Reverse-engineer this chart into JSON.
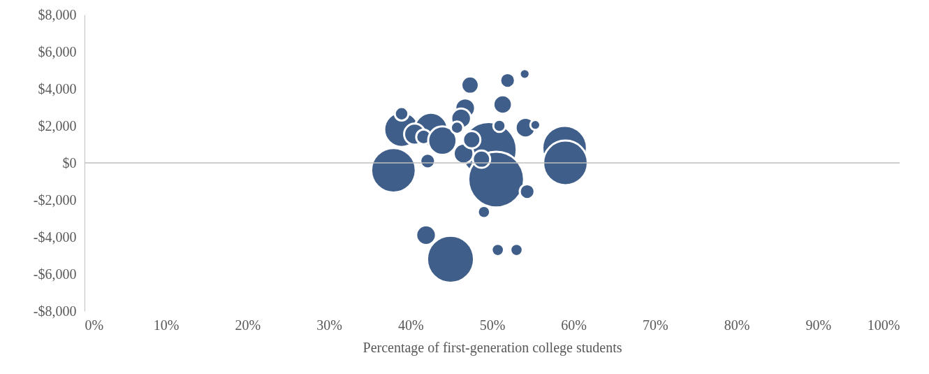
{
  "chart_data": {
    "type": "bubble",
    "xlabel": "Percentage of first-generation college students",
    "x": [
      49.6,
      58.9,
      38.9,
      37.9,
      50.5,
      59.0,
      44.9,
      41.9,
      50.7,
      53.0,
      47.3,
      51.9,
      54.0,
      51.3,
      38.9,
      42.5,
      40.5,
      41.6,
      43.9,
      46.7,
      46.2,
      45.7,
      46.5,
      48.7,
      47.5,
      50.9,
      54.1,
      55.3,
      49.0,
      54.3,
      42.1
    ],
    "values": [
      700,
      800,
      1800,
      -400,
      -900,
      0,
      -5200,
      -3900,
      -4700,
      -4700,
      4200,
      4450,
      4800,
      3150,
      2650,
      1800,
      1550,
      1400,
      1200,
      2950,
      2400,
      1900,
      500,
      200,
      1250,
      2000,
      1900,
      2050,
      -2650,
      -1550,
      100
    ],
    "sizes": [
      1,
      0.64,
      0.39,
      0.64,
      1,
      0.64,
      0.71,
      0.126,
      0.049,
      0.049,
      0.097,
      0.071,
      0.032,
      0.111,
      0.06,
      0.36,
      0.143,
      0.071,
      0.26,
      0.126,
      0.126,
      0.049,
      0.126,
      0.097,
      0.097,
      0.049,
      0.126,
      0.032,
      0.049,
      0.071,
      0.071
    ],
    "color": "#3f5e8a",
    "xlim": [
      0,
      100
    ],
    "xticks": [
      {
        "value": 0,
        "label": "0%"
      },
      {
        "value": 10,
        "label": "10%"
      },
      {
        "value": 20,
        "label": "20%"
      },
      {
        "value": 30,
        "label": "30%"
      },
      {
        "value": 40,
        "label": "40%"
      },
      {
        "value": 50,
        "label": "50%"
      },
      {
        "value": 60,
        "label": "60%"
      },
      {
        "value": 70,
        "label": "70%"
      },
      {
        "value": 80,
        "label": "80%"
      },
      {
        "value": 90,
        "label": "90%"
      },
      {
        "value": 100,
        "label": "100%"
      }
    ],
    "ylim": [
      -8000,
      8000
    ],
    "yticks": [
      {
        "value": -8000,
        "label": "-$8,000"
      },
      {
        "value": -6000,
        "label": "-$6,000"
      },
      {
        "value": -4000,
        "label": "-$4,000"
      },
      {
        "value": -2000,
        "label": "-$2,000"
      },
      {
        "value": 0,
        "label": "$0"
      },
      {
        "value": 2000,
        "label": "$2,000"
      },
      {
        "value": 4000,
        "label": "$4,000"
      },
      {
        "value": 6000,
        "label": "$6,000"
      },
      {
        "value": 8000,
        "label": "$8,000"
      }
    ],
    "ref_lines": [
      {
        "axis": "y",
        "value": 0
      }
    ],
    "grid": false
  }
}
